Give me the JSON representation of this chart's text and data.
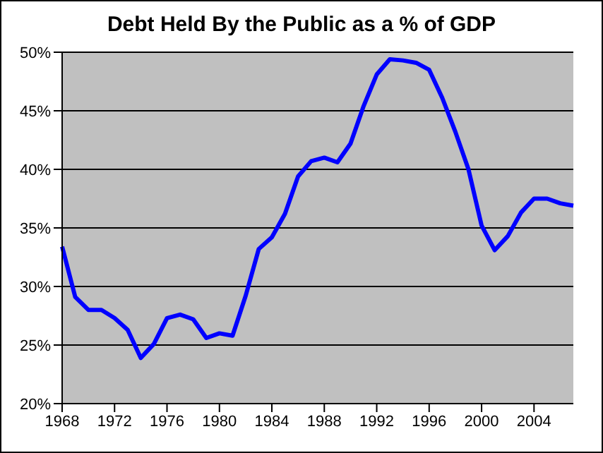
{
  "chart_data": {
    "type": "line",
    "title": "Debt Held By the Public as a % of GDP",
    "categories": [
      "1968",
      null,
      null,
      null,
      "1972",
      null,
      null,
      null,
      "1976",
      null,
      null,
      null,
      "1980",
      null,
      null,
      null,
      "1984",
      null,
      null,
      null,
      "1988",
      null,
      null,
      null,
      "1992",
      null,
      null,
      null,
      "1996",
      null,
      null,
      null,
      "2000",
      null,
      null,
      null,
      "2004",
      null,
      null,
      null
    ],
    "series": [
      {
        "color": "#0000ff",
        "values": [
          33.4,
          29.1,
          28.0,
          28.0,
          27.3,
          26.3,
          23.9,
          25.1,
          27.3,
          27.6,
          27.2,
          25.6,
          26.0,
          25.8,
          29.2,
          33.2,
          34.2,
          36.2,
          39.4,
          40.7,
          41.0,
          40.6,
          42.2,
          45.4,
          48.1,
          49.4,
          49.3,
          49.1,
          48.5,
          46.1,
          43.2,
          40.0,
          35.2,
          33.1,
          34.3,
          36.3,
          37.5,
          37.5,
          37.1,
          36.9
        ]
      }
    ],
    "ylim": [
      20,
      50
    ],
    "yticks": [
      {
        "value": 20,
        "label": "20%"
      },
      {
        "value": 25,
        "label": "25%"
      },
      {
        "value": 30,
        "label": "30%"
      },
      {
        "value": 35,
        "label": "35%"
      },
      {
        "value": 40,
        "label": "40%"
      },
      {
        "value": 45,
        "label": "45%"
      },
      {
        "value": 50,
        "label": "50%"
      }
    ],
    "grid": "y",
    "legend": false
  }
}
